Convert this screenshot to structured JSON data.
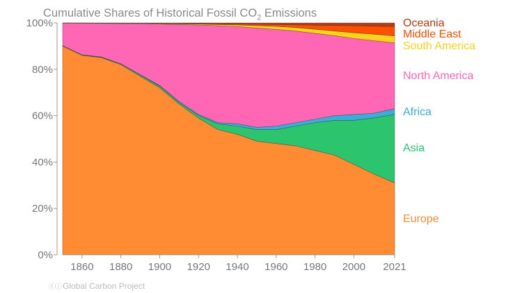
{
  "chart_data": {
    "type": "area",
    "stacked": true,
    "normalized": true,
    "title": "Cumulative Shares of Historical Fossil CO2 Emissions",
    "title_parts": {
      "pre": "Cumulative Shares of Historical Fossil CO",
      "sub": "2",
      "post": " Emissions"
    },
    "xlim": [
      1850,
      2021
    ],
    "ylim": [
      0,
      100
    ],
    "x_ticks": [
      1860,
      1880,
      1900,
      1920,
      1940,
      1960,
      1980,
      2000,
      2021
    ],
    "y_ticks": [
      0,
      20,
      40,
      60,
      80,
      100
    ],
    "y_tick_labels": [
      "0%",
      "20%",
      "40%",
      "60%",
      "80%",
      "100%"
    ],
    "grid": false,
    "legend": "right, direct labels",
    "x": [
      1850,
      1860,
      1870,
      1880,
      1890,
      1900,
      1910,
      1920,
      1930,
      1940,
      1950,
      1960,
      1970,
      1980,
      1990,
      2000,
      2010,
      2021
    ],
    "series": [
      {
        "name": "Europe",
        "color": "#ff8c32",
        "values": [
          90,
          86,
          85,
          82,
          77,
          72,
          65,
          59,
          54,
          52,
          49,
          48,
          47,
          45,
          43,
          39,
          35,
          31
        ]
      },
      {
        "name": "Asia",
        "color": "#2dc46e",
        "values": [
          0.1,
          0.2,
          0.2,
          0.3,
          0.5,
          0.7,
          0.7,
          1,
          2.5,
          3.5,
          5,
          6,
          8.5,
          12,
          15,
          19,
          24,
          29.5
        ]
      },
      {
        "name": "Africa",
        "color": "#3aaed8",
        "values": [
          0.1,
          0.1,
          0.1,
          0.1,
          0.2,
          0.3,
          0.4,
          0.5,
          0.5,
          1,
          1,
          1.5,
          1.5,
          1.5,
          2,
          2.5,
          2,
          2.5
        ]
      },
      {
        "name": "North America",
        "color": "#ff66b3",
        "values": [
          9.7,
          13.6,
          14.5,
          17.3,
          22,
          26.5,
          33.2,
          38.6,
          41.8,
          41.9,
          42.8,
          41.7,
          39.5,
          37,
          34.5,
          32.8,
          31.4,
          28.4
        ]
      },
      {
        "name": "South America",
        "color": "#ffd21a",
        "values": [
          0.05,
          0.05,
          0.1,
          0.15,
          0.1,
          0.25,
          0.3,
          0.4,
          0.5,
          0.7,
          1,
          1.3,
          1.5,
          1.8,
          2,
          2.5,
          2.8,
          3
        ]
      },
      {
        "name": "Middle East",
        "color": "#ff5000",
        "values": [
          0.02,
          0.02,
          0.05,
          0.08,
          0.1,
          0.13,
          0.2,
          0.25,
          0.3,
          0.4,
          0.6,
          0.8,
          1.2,
          1.7,
          2.4,
          3,
          3.4,
          4
        ]
      },
      {
        "name": "Oceania",
        "color": "#b33c14",
        "values": [
          0.03,
          0.03,
          0.05,
          0.07,
          0.1,
          0.12,
          0.2,
          0.25,
          0.4,
          0.5,
          0.6,
          0.7,
          0.8,
          1,
          1.1,
          1.2,
          1.4,
          1.6
        ]
      }
    ]
  },
  "credit": "Global Carbon Project",
  "credit_icons": "cc-by-icon"
}
